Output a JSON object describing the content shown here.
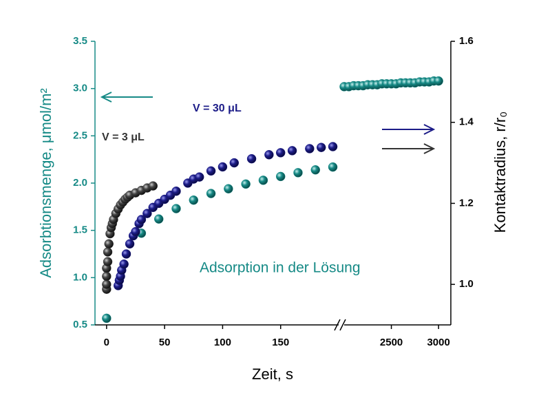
{
  "chart_data": {
    "type": "scatter",
    "xlabel": "Zeit, s",
    "ylabel": "Adsorbtionsmenge, μmol/m²",
    "y2label": "Kontaktradius, r/r₀",
    "x_break": true,
    "x_segments": [
      {
        "xlim": [
          -10,
          200
        ],
        "xticks": [
          0,
          50,
          100,
          150
        ]
      },
      {
        "xlim": [
          2000,
          3130
        ],
        "xticks": [
          2500,
          3000
        ]
      }
    ],
    "ylim": [
      0.5,
      3.5
    ],
    "yticks": [
      0.5,
      {
        "value": 1,
        "label": "1.0"
      },
      1.5,
      {
        "value": 2,
        "label": "2.0"
      },
      2.5,
      {
        "value": 3,
        "label": "3.0"
      },
      3.5
    ],
    "y2lim": [
      0.9,
      1.6
    ],
    "y2ticks": [
      {
        "value": 1,
        "label": "1.0"
      },
      1.2,
      1.4,
      1.6
    ],
    "annotations": [
      "V = 30 μL",
      "V = 3 μL",
      "Adsorption in der Lösung"
    ],
    "series": [
      {
        "color": "#168a86",
        "axis": "y",
        "x": [
          0,
          30,
          45,
          60,
          75,
          90,
          105,
          120,
          135,
          150,
          165,
          180,
          195,
          2000,
          2050,
          2100,
          2150,
          2200,
          2250,
          2300,
          2350,
          2400,
          2450,
          2500,
          2550,
          2600,
          2650,
          2700,
          2750,
          2800,
          2850,
          2900,
          2950,
          3000
        ],
        "values": [
          0.57,
          1.47,
          1.62,
          1.73,
          1.82,
          1.89,
          1.94,
          1.99,
          2.03,
          2.07,
          2.11,
          2.14,
          2.17,
          3.02,
          3.02,
          3.03,
          3.03,
          3.03,
          3.04,
          3.04,
          3.04,
          3.05,
          3.05,
          3.05,
          3.05,
          3.06,
          3.06,
          3.06,
          3.06,
          3.07,
          3.07,
          3.07,
          3.08,
          3.08
        ]
      },
      {
        "color": "#1c1c88",
        "axis": "y2",
        "x": [
          10,
          11,
          12,
          13,
          15,
          17,
          20,
          23,
          25,
          28,
          30,
          35,
          40,
          45,
          50,
          55,
          60,
          70,
          75,
          80,
          90,
          100,
          110,
          125,
          140,
          150,
          160,
          175,
          185,
          195
        ],
        "values": [
          0.997,
          1.01,
          1.02,
          1.035,
          1.05,
          1.075,
          1.1,
          1.12,
          1.13,
          1.15,
          1.16,
          1.175,
          1.19,
          1.2,
          1.21,
          1.22,
          1.23,
          1.25,
          1.26,
          1.265,
          1.28,
          1.29,
          1.3,
          1.31,
          1.32,
          1.325,
          1.33,
          1.335,
          1.338,
          1.34
        ]
      },
      {
        "color": "#444444",
        "axis": "y2",
        "x": [
          0,
          0,
          0,
          0,
          1,
          1,
          2,
          3,
          4,
          5,
          6,
          8,
          10,
          12,
          14,
          16,
          18,
          20,
          25,
          30,
          35,
          40
        ],
        "values": [
          0.988,
          1.0,
          1.02,
          1.04,
          1.056,
          1.08,
          1.1,
          1.125,
          1.14,
          1.15,
          1.16,
          1.175,
          1.186,
          1.196,
          1.203,
          1.21,
          1.215,
          1.22,
          1.226,
          1.232,
          1.238,
          1.243
        ]
      }
    ]
  }
}
